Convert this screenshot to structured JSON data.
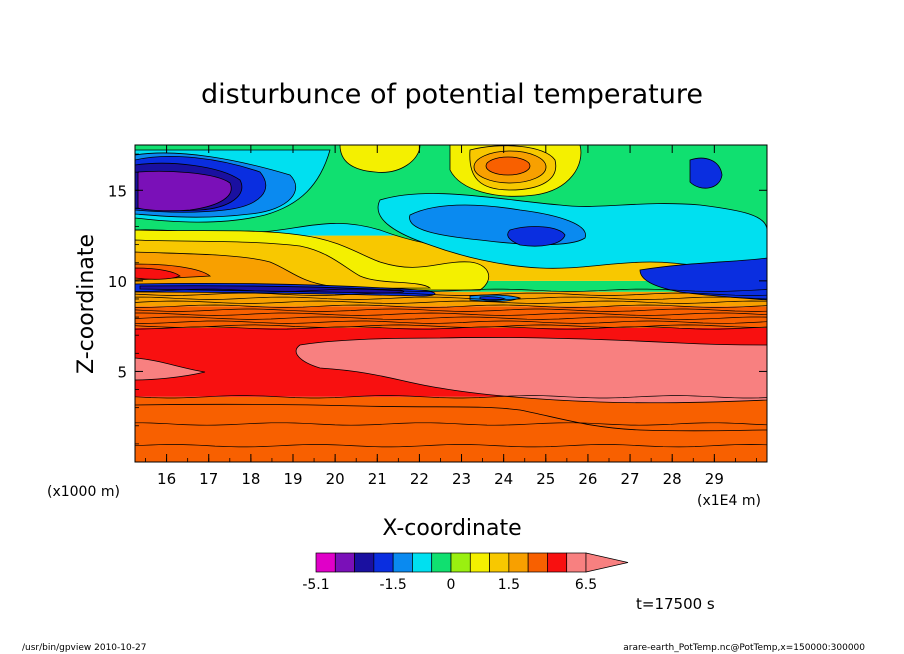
{
  "chart_data": {
    "type": "contour",
    "title": "disturbunce of potential temperature",
    "xlabel": "X-coordinate",
    "ylabel": "Z-coordinate",
    "x_unit_left": "(x1000 m)",
    "x_unit_right": "(x1E4 m)",
    "xlim": [
      15.25,
      30.25
    ],
    "ylim": [
      0,
      17.5
    ],
    "xticks": [
      "16",
      "17",
      "18",
      "19",
      "20",
      "21",
      "22",
      "23",
      "24",
      "25",
      "26",
      "27",
      "28",
      "29"
    ],
    "yticks": [
      "5",
      "10",
      "15"
    ],
    "colorbar": {
      "levels": [
        -5.1,
        -4.1,
        -3.1,
        -2.1,
        -1.5,
        -1.0,
        -0.5,
        0,
        0.5,
        1.0,
        1.5,
        2.5,
        3.5,
        4.5,
        6.5
      ],
      "labels": [
        "-5.1",
        "-1.5",
        "0",
        "1.5",
        "6.5"
      ],
      "colors": [
        "#e000c8",
        "#7a10b8",
        "#1a10a0",
        "#0a2ee0",
        "#0a8af0",
        "#00e0f0",
        "#10e070",
        "#9af010",
        "#f4f000",
        "#f8c800",
        "#f8a000",
        "#f86000",
        "#f81010",
        "#f88080"
      ]
    },
    "bands": [
      {
        "zmin": 0.0,
        "zmax": 3.6,
        "value": 1.5,
        "color": "#f86000"
      },
      {
        "zmin": 3.6,
        "zmax": 7.4,
        "value": 3.5,
        "color": "#f81010"
      },
      {
        "zmin": 7.4,
        "zmax": 8.6,
        "value": 2.5,
        "color": "#f86000"
      },
      {
        "zmin": 8.6,
        "zmax": 9.4,
        "value": 1.5,
        "color": "#f8a000"
      },
      {
        "zmin": 9.4,
        "zmax": 10.0,
        "value": 0.5,
        "color": "#10e070"
      },
      {
        "zmin": 10.0,
        "zmax": 12.5,
        "value": 1.0,
        "color": "#f8c800"
      },
      {
        "zmin": 12.5,
        "zmax": 17.5,
        "value": -0.5,
        "color": "#00e0f0"
      }
    ]
  },
  "time_label": "t=17500 s",
  "footer_left": "/usr/bin/gpview 2010-10-27",
  "footer_right": "arare-earth_PotTemp.nc@PotTemp,x=150000:300000"
}
